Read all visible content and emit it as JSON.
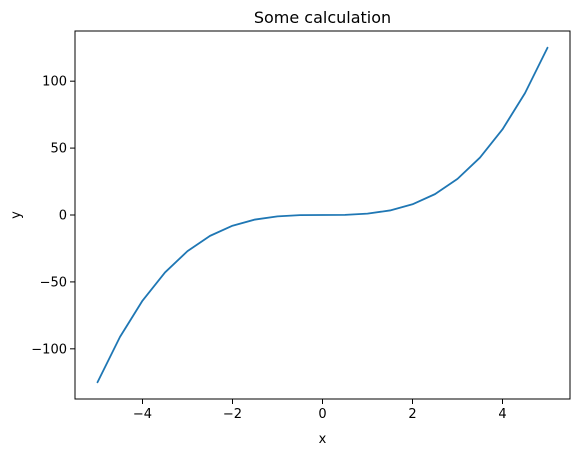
{
  "chart_data": {
    "type": "line",
    "title": "Some calculation",
    "xlabel": "x",
    "ylabel": "y",
    "xlim": [
      -5.5,
      5.5
    ],
    "ylim": [
      -137.5,
      137.5
    ],
    "xticks": [
      -4,
      -2,
      0,
      2,
      4
    ],
    "xtick_labels": [
      "−4",
      "−2",
      "0",
      "2",
      "4"
    ],
    "yticks": [
      -100,
      -50,
      0,
      50,
      100
    ],
    "ytick_labels": [
      "−100",
      "−50",
      "0",
      "50",
      "100"
    ],
    "grid": false,
    "series": [
      {
        "color": "#1f77b4",
        "x": [
          -5,
          -4.5,
          -4,
          -3.5,
          -3,
          -2.5,
          -2,
          -1.5,
          -1,
          -0.5,
          0,
          0.5,
          1,
          1.5,
          2,
          2.5,
          3,
          3.5,
          4,
          4.5,
          5
        ],
        "y": [
          -125,
          -91.1,
          -64,
          -42.9,
          -27,
          -15.6,
          -8,
          -3.4,
          -1,
          -0.1,
          0,
          0.1,
          1,
          3.4,
          8,
          15.6,
          27,
          42.9,
          64,
          91.1,
          125
        ]
      }
    ]
  }
}
